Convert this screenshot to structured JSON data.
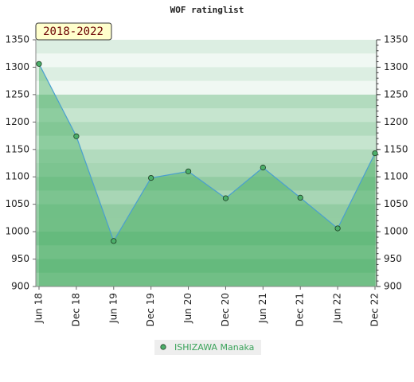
{
  "chart_data": {
    "type": "line",
    "title": "WOF ratinglist",
    "annotation": "2018-2022",
    "categories": [
      "Jun 18",
      "Dec 18",
      "Jun 19",
      "Dec 19",
      "Jun 20",
      "Dec 20",
      "Jun 21",
      "Dec 21",
      "Jun 22",
      "Dec 22"
    ],
    "series": [
      {
        "name": "ISHIZAWA Manaka",
        "color": "#4a9fd0",
        "values": [
          1306,
          1174,
          983,
          1098,
          1110,
          1061,
          1117,
          1062,
          1006,
          1143
        ]
      }
    ],
    "ylim": [
      900,
      1350
    ],
    "yticks": [
      900,
      950,
      1000,
      1050,
      1100,
      1150,
      1200,
      1250,
      1300,
      1350
    ],
    "y2lim": [
      900,
      1350
    ],
    "y2ticks": [
      900,
      950,
      1000,
      1050,
      1100,
      1150,
      1200,
      1250,
      1300,
      1350
    ]
  }
}
